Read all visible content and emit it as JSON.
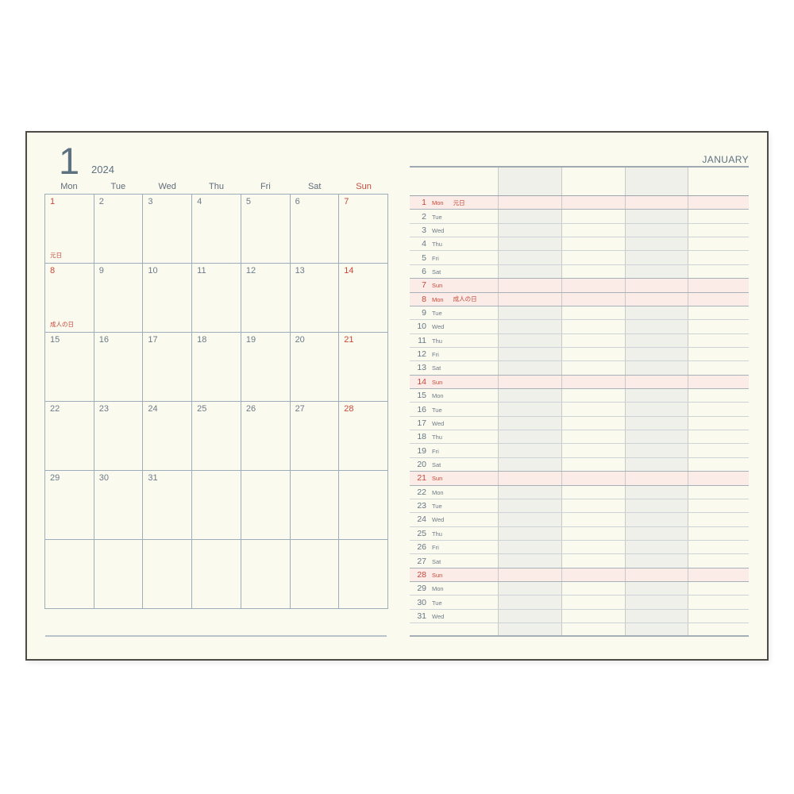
{
  "page": {
    "month_number": "1",
    "year": "2024",
    "month_name": "JANUARY"
  },
  "colors": {
    "page_background": "#fbfaef",
    "accent_red": "#c8473a",
    "slate_blue": "#5d7181",
    "sunday_row_background": "#fbece7",
    "shaded_column": "#f0f0ea",
    "grid_line": "#9dadbb",
    "book_border": "#4c4b45"
  },
  "left_calendar": {
    "weekday_headers": [
      {
        "label": "Mon",
        "red": false
      },
      {
        "label": "Tue",
        "red": false
      },
      {
        "label": "Wed",
        "red": false
      },
      {
        "label": "Thu",
        "red": false
      },
      {
        "label": "Fri",
        "red": false
      },
      {
        "label": "Sat",
        "red": false
      },
      {
        "label": "Sun",
        "red": true
      }
    ],
    "weeks": [
      [
        {
          "day": "1",
          "red": true,
          "holiday": "元日"
        },
        {
          "day": "2",
          "red": false
        },
        {
          "day": "3",
          "red": false
        },
        {
          "day": "4",
          "red": false
        },
        {
          "day": "5",
          "red": false
        },
        {
          "day": "6",
          "red": false
        },
        {
          "day": "7",
          "red": true
        }
      ],
      [
        {
          "day": "8",
          "red": true,
          "holiday": "成人の日"
        },
        {
          "day": "9",
          "red": false
        },
        {
          "day": "10",
          "red": false
        },
        {
          "day": "11",
          "red": false
        },
        {
          "day": "12",
          "red": false
        },
        {
          "day": "13",
          "red": false
        },
        {
          "day": "14",
          "red": true
        }
      ],
      [
        {
          "day": "15",
          "red": false
        },
        {
          "day": "16",
          "red": false
        },
        {
          "day": "17",
          "red": false
        },
        {
          "day": "18",
          "red": false
        },
        {
          "day": "19",
          "red": false
        },
        {
          "day": "20",
          "red": false
        },
        {
          "day": "21",
          "red": true
        }
      ],
      [
        {
          "day": "22",
          "red": false
        },
        {
          "day": "23",
          "red": false
        },
        {
          "day": "24",
          "red": false
        },
        {
          "day": "25",
          "red": false
        },
        {
          "day": "26",
          "red": false
        },
        {
          "day": "27",
          "red": false
        },
        {
          "day": "28",
          "red": true
        }
      ],
      [
        {
          "day": "29",
          "red": false
        },
        {
          "day": "30",
          "red": false
        },
        {
          "day": "31",
          "red": false
        },
        null,
        null,
        null,
        null
      ],
      [
        null,
        null,
        null,
        null,
        null,
        null,
        null
      ]
    ]
  },
  "right_schedule": {
    "days": [
      {
        "num": "1",
        "weekday": "Mon",
        "holiday": "元日",
        "highlight": true
      },
      {
        "num": "2",
        "weekday": "Tue",
        "holiday": "",
        "highlight": false
      },
      {
        "num": "3",
        "weekday": "Wed",
        "holiday": "",
        "highlight": false
      },
      {
        "num": "4",
        "weekday": "Thu",
        "holiday": "",
        "highlight": false
      },
      {
        "num": "5",
        "weekday": "Fri",
        "holiday": "",
        "highlight": false
      },
      {
        "num": "6",
        "weekday": "Sat",
        "holiday": "",
        "highlight": false
      },
      {
        "num": "7",
        "weekday": "Sun",
        "holiday": "",
        "highlight": true
      },
      {
        "num": "8",
        "weekday": "Mon",
        "holiday": "成人の日",
        "highlight": true
      },
      {
        "num": "9",
        "weekday": "Tue",
        "holiday": "",
        "highlight": false
      },
      {
        "num": "10",
        "weekday": "Wed",
        "holiday": "",
        "highlight": false
      },
      {
        "num": "11",
        "weekday": "Thu",
        "holiday": "",
        "highlight": false
      },
      {
        "num": "12",
        "weekday": "Fri",
        "holiday": "",
        "highlight": false
      },
      {
        "num": "13",
        "weekday": "Sat",
        "holiday": "",
        "highlight": false
      },
      {
        "num": "14",
        "weekday": "Sun",
        "holiday": "",
        "highlight": true
      },
      {
        "num": "15",
        "weekday": "Mon",
        "holiday": "",
        "highlight": false
      },
      {
        "num": "16",
        "weekday": "Tue",
        "holiday": "",
        "highlight": false
      },
      {
        "num": "17",
        "weekday": "Wed",
        "holiday": "",
        "highlight": false
      },
      {
        "num": "18",
        "weekday": "Thu",
        "holiday": "",
        "highlight": false
      },
      {
        "num": "19",
        "weekday": "Fri",
        "holiday": "",
        "highlight": false
      },
      {
        "num": "20",
        "weekday": "Sat",
        "holiday": "",
        "highlight": false
      },
      {
        "num": "21",
        "weekday": "Sun",
        "holiday": "",
        "highlight": true
      },
      {
        "num": "22",
        "weekday": "Mon",
        "holiday": "",
        "highlight": false
      },
      {
        "num": "23",
        "weekday": "Tue",
        "holiday": "",
        "highlight": false
      },
      {
        "num": "24",
        "weekday": "Wed",
        "holiday": "",
        "highlight": false
      },
      {
        "num": "25",
        "weekday": "Thu",
        "holiday": "",
        "highlight": false
      },
      {
        "num": "26",
        "weekday": "Fri",
        "holiday": "",
        "highlight": false
      },
      {
        "num": "27",
        "weekday": "Sat",
        "holiday": "",
        "highlight": false
      },
      {
        "num": "28",
        "weekday": "Sun",
        "holiday": "",
        "highlight": true
      },
      {
        "num": "29",
        "weekday": "Mon",
        "holiday": "",
        "highlight": false
      },
      {
        "num": "30",
        "weekday": "Tue",
        "holiday": "",
        "highlight": false
      },
      {
        "num": "31",
        "weekday": "Wed",
        "holiday": "",
        "highlight": false
      }
    ]
  }
}
